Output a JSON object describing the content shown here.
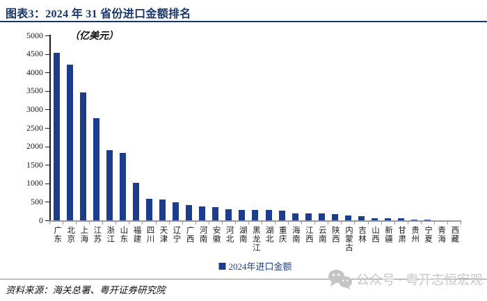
{
  "header": {
    "title": "图表3：2024 年 31 省份进口金额排名"
  },
  "chart_data": {
    "type": "bar",
    "title": "2024 年 31 省份进口金额排名",
    "unit_label": "（亿美元）",
    "categories": [
      "广东",
      "北京",
      "上海",
      "江苏",
      "浙江",
      "山东",
      "福建",
      "四川",
      "天津",
      "辽宁",
      "广西",
      "河南",
      "安徽",
      "河北",
      "湖南",
      "黑龙江",
      "湖北",
      "重庆",
      "海南",
      "江西",
      "云南",
      "陕西",
      "内蒙古",
      "吉林",
      "山西",
      "新疆",
      "甘肃",
      "贵州",
      "宁夏",
      "青海",
      "西藏"
    ],
    "values": [
      4530,
      4220,
      3450,
      2760,
      1890,
      1820,
      1020,
      585,
      570,
      490,
      405,
      385,
      355,
      295,
      285,
      280,
      275,
      255,
      190,
      185,
      180,
      165,
      125,
      115,
      65,
      60,
      48,
      25,
      12,
      8,
      5
    ],
    "ylim": [
      0,
      5000
    ],
    "yticks": [
      0,
      500,
      1000,
      1500,
      2000,
      2500,
      3000,
      3500,
      4000,
      4500,
      5000
    ],
    "grid": false,
    "legend": [
      "2024年进口金额"
    ],
    "legend_position": "bottom",
    "bar_color": "#1b3d8c"
  },
  "footer": {
    "source": "资料来源：海关总署、粤开证券研究院"
  },
  "watermark": {
    "icon": "wechat-icon",
    "text": "公众号 · 粤开志恒宏观"
  },
  "colors": {
    "title": "#17356d",
    "bar": "#1b3d8c",
    "axis_dark": "#1a1a1a",
    "axis_grey": "#999999",
    "watermark_grey": "#c7c7c7"
  }
}
